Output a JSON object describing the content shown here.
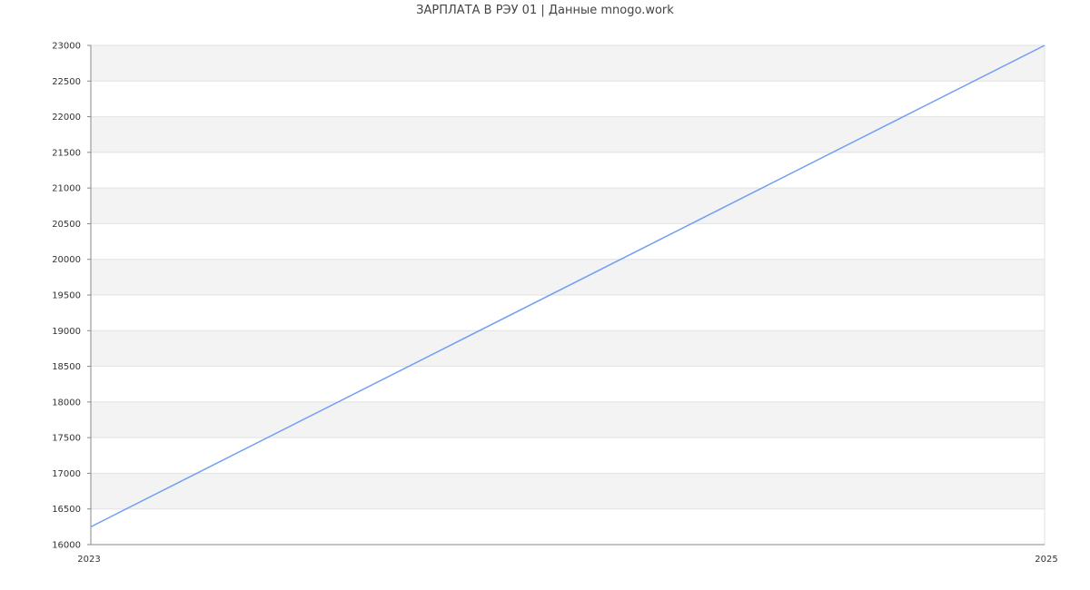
{
  "chart_data": {
    "type": "line",
    "title": "ЗАРПЛАТА В РЭУ 01 | Данные mnogo.work",
    "x": [
      "2023",
      "2025"
    ],
    "series": [
      {
        "values": [
          16250,
          23000
        ],
        "color": "#6f9ef5"
      }
    ],
    "ylim": [
      16000,
      23000
    ],
    "yticks": [
      16000,
      16500,
      17000,
      17500,
      18000,
      18500,
      19000,
      19500,
      20000,
      20500,
      21000,
      21500,
      22000,
      22500,
      23000
    ],
    "grid": true,
    "band_color": "#f3f3f3",
    "legend": "none"
  }
}
